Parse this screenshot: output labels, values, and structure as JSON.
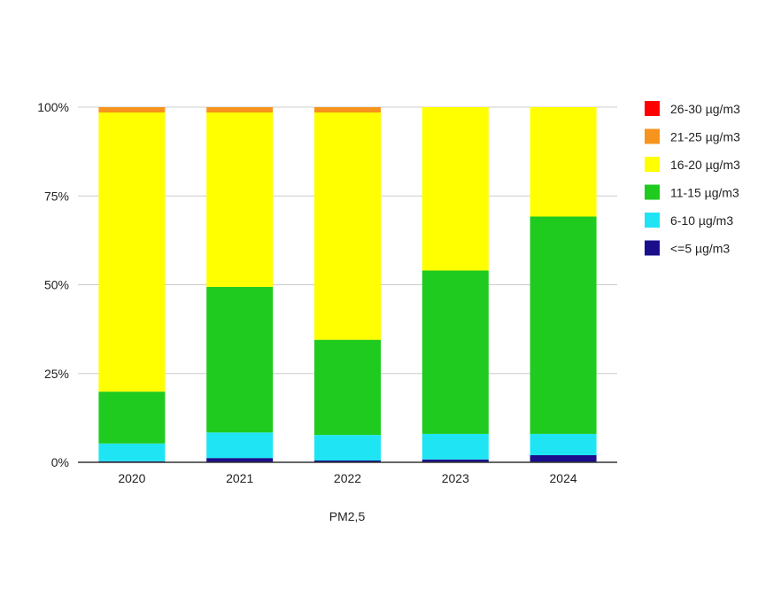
{
  "chart_data": {
    "type": "bar",
    "stacked": true,
    "normalized": true,
    "xlabel": "PM2,5",
    "ylabel": "",
    "ylim": [
      0,
      100
    ],
    "y_ticks": [
      "0%",
      "25%",
      "50%",
      "75%",
      "100%"
    ],
    "categories": [
      "2020",
      "2021",
      "2022",
      "2023",
      "2024"
    ],
    "grid": "horizontal",
    "legend_position": "right",
    "series": [
      {
        "name": "<=5 µg/m3",
        "color": "#1a0e8c",
        "values": [
          0.3,
          1.2,
          0.5,
          0.8,
          2.0
        ]
      },
      {
        "name": "6-10 µg/m3",
        "color": "#1fe4f4",
        "values": [
          5.0,
          7.2,
          7.2,
          7.2,
          6.0
        ]
      },
      {
        "name": "11-15 µg/m3",
        "color": "#1ecb1e",
        "values": [
          14.6,
          41.0,
          26.8,
          46.0,
          61.2
        ]
      },
      {
        "name": "16-20 µg/m3",
        "color": "#ffff00",
        "values": [
          78.6,
          49.1,
          64.0,
          46.0,
          30.8
        ]
      },
      {
        "name": "21-25 µg/m3",
        "color": "#f7941d",
        "values": [
          1.5,
          1.5,
          1.5,
          0.0,
          0.0
        ]
      },
      {
        "name": "26-30 µg/m3",
        "color": "#ff0000",
        "values": [
          0.0,
          0.0,
          0.0,
          0.0,
          0.0
        ]
      }
    ]
  }
}
